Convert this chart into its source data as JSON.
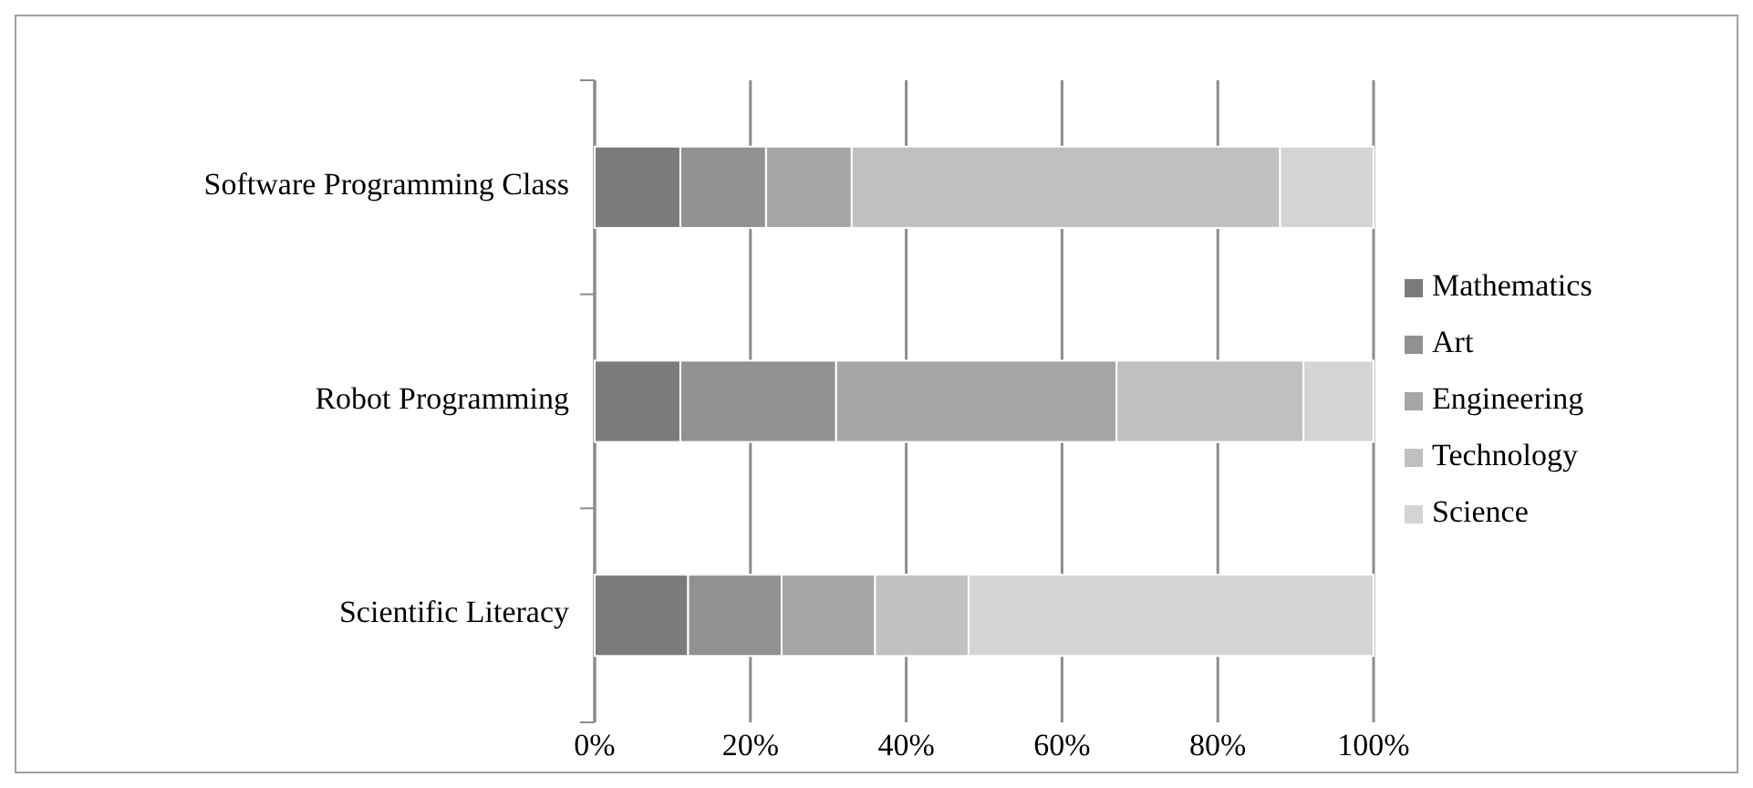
{
  "chart_data": {
    "type": "bar",
    "orientation": "horizontal",
    "stacked": true,
    "categories": [
      "Software Programming Class",
      "Robot Programming",
      "Scientific Literacy"
    ],
    "series": [
      {
        "name": "Mathematics",
        "color": "#7b7b7b",
        "values": [
          11,
          11,
          12
        ]
      },
      {
        "name": "Art",
        "color": "#919191",
        "values": [
          11,
          20,
          12
        ]
      },
      {
        "name": "Engineering",
        "color": "#a6a6a6",
        "values": [
          11,
          36,
          12
        ]
      },
      {
        "name": "Technology",
        "color": "#c0c0c0",
        "values": [
          55,
          24,
          12
        ]
      },
      {
        "name": "Science",
        "color": "#d4d4d4",
        "values": [
          12,
          9,
          52
        ]
      }
    ],
    "xlim": [
      0,
      100
    ],
    "xticks": [
      {
        "value": 0,
        "label": "0%"
      },
      {
        "value": 20,
        "label": "20%"
      },
      {
        "value": 40,
        "label": "40%"
      },
      {
        "value": 60,
        "label": "60%"
      },
      {
        "value": 80,
        "label": "80%"
      },
      {
        "value": 100,
        "label": "100%"
      }
    ],
    "grid": "x",
    "legend": "right"
  }
}
